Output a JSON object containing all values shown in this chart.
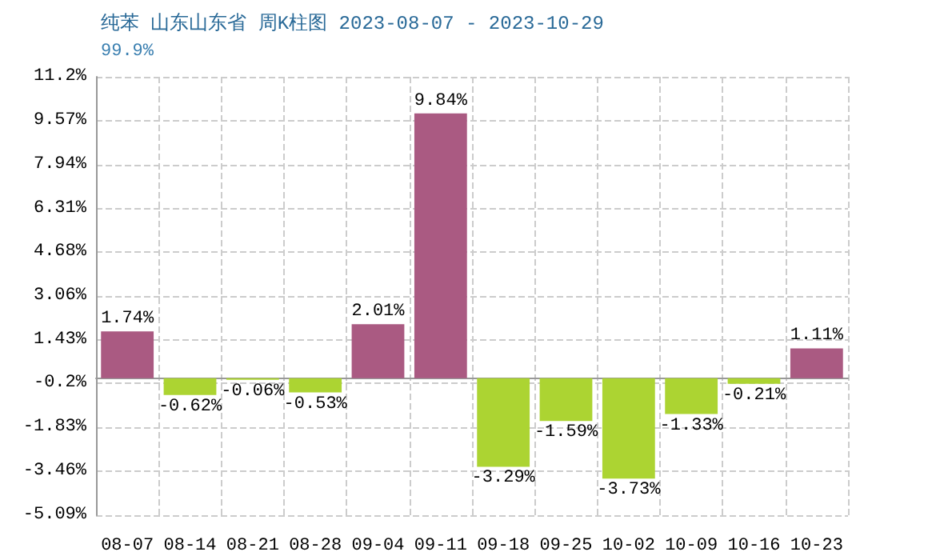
{
  "chart_data": {
    "type": "bar",
    "title": "纯苯 山东山东省 周K柱图 2023-08-07 - 2023-10-29",
    "subtitle": "99.9%",
    "categories": [
      "08-07",
      "08-14",
      "08-21",
      "08-28",
      "09-04",
      "09-11",
      "09-18",
      "09-25",
      "10-02",
      "10-09",
      "10-16",
      "10-23"
    ],
    "values": [
      1.74,
      -0.62,
      -0.06,
      -0.53,
      2.01,
      9.84,
      -3.29,
      -1.59,
      -3.73,
      -1.33,
      -0.21,
      1.11
    ],
    "value_labels": [
      "1.74%",
      "-0.62%",
      "-0.06%",
      "-0.53%",
      "2.01%",
      "9.84%",
      "-3.29%",
      "-1.59%",
      "-3.73%",
      "-1.33%",
      "-0.21%",
      "1.11%"
    ],
    "colors": [
      "#aa5a82",
      "#acd432",
      "#acd432",
      "#acd432",
      "#aa5a82",
      "#aa5a82",
      "#acd432",
      "#acd432",
      "#acd432",
      "#acd432",
      "#acd432",
      "#aa5a82"
    ],
    "ylim": [
      -5.09,
      11.2
    ],
    "yticks": [
      {
        "value": -5.09,
        "label": "-5.09%"
      },
      {
        "value": -3.46,
        "label": "-3.46%"
      },
      {
        "value": -1.83,
        "label": "-1.83%"
      },
      {
        "value": -0.2,
        "label": "-0.2%"
      },
      {
        "value": 1.43,
        "label": "1.43%"
      },
      {
        "value": 3.06,
        "label": "3.06%"
      },
      {
        "value": 4.68,
        "label": "4.68%"
      },
      {
        "value": 6.31,
        "label": "6.31%"
      },
      {
        "value": 7.94,
        "label": "7.94%"
      },
      {
        "value": 9.57,
        "label": "9.57%"
      },
      {
        "value": 11.2,
        "label": "11.2%"
      }
    ],
    "grid": true
  }
}
